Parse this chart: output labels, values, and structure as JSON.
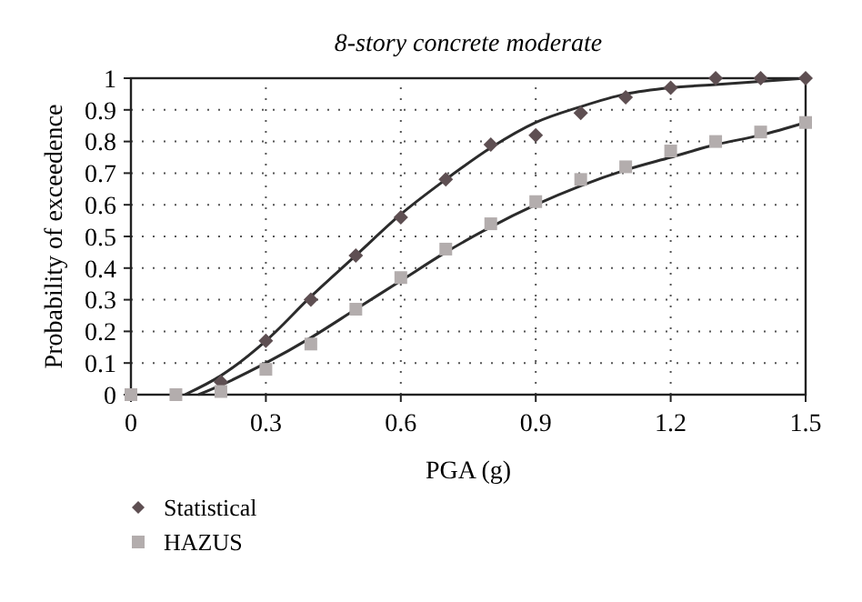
{
  "chart_data": {
    "type": "scatter",
    "title": "8-story concrete moderate",
    "xlabel": "PGA (g)",
    "ylabel": "Probability of exceedence",
    "xlim": [
      0,
      1.5
    ],
    "ylim": [
      0,
      1
    ],
    "xticks": [
      0,
      0.3,
      0.6,
      0.9,
      1.2,
      1.5
    ],
    "yticks": [
      0,
      0.1,
      0.2,
      0.3,
      0.4,
      0.5,
      0.6,
      0.7,
      0.8,
      0.9,
      1
    ],
    "grid": true,
    "legend": "bottom left",
    "series": [
      {
        "type": "line",
        "color": "#2b2b2b",
        "marker": "none",
        "line_style": "solid",
        "x": [
          0.12,
          0.2,
          0.3,
          0.4,
          0.5,
          0.6,
          0.7,
          0.8,
          0.9,
          1.0,
          1.1,
          1.2,
          1.3,
          1.4,
          1.5
        ],
        "values": [
          0,
          0.06,
          0.17,
          0.31,
          0.44,
          0.57,
          0.68,
          0.78,
          0.86,
          0.91,
          0.95,
          0.97,
          0.98,
          0.99,
          1.0
        ]
      },
      {
        "type": "line",
        "color": "#2b2b2b",
        "marker": "none",
        "line_style": "solid",
        "x": [
          0.15,
          0.2,
          0.3,
          0.4,
          0.5,
          0.6,
          0.7,
          0.8,
          0.9,
          1.0,
          1.1,
          1.2,
          1.3,
          1.4,
          1.5
        ],
        "values": [
          0,
          0.03,
          0.1,
          0.18,
          0.27,
          0.36,
          0.45,
          0.53,
          0.6,
          0.66,
          0.71,
          0.75,
          0.79,
          0.82,
          0.86
        ]
      },
      {
        "name": "Statistical",
        "marker": "diamond",
        "color": "#5e4f52",
        "x": [
          0.2,
          0.3,
          0.4,
          0.5,
          0.6,
          0.7,
          0.8,
          0.9,
          1.0,
          1.1,
          1.2,
          1.3,
          1.4,
          1.5
        ],
        "values": [
          0.04,
          0.17,
          0.3,
          0.44,
          0.56,
          0.68,
          0.79,
          0.82,
          0.89,
          0.94,
          0.97,
          1,
          1,
          1
        ]
      },
      {
        "name": "HAZUS",
        "marker": "square",
        "color": "#b3adad",
        "x": [
          0,
          0.1,
          0.2,
          0.3,
          0.4,
          0.5,
          0.6,
          0.7,
          0.8,
          0.9,
          1.0,
          1.1,
          1.2,
          1.3,
          1.4,
          1.5
        ],
        "values": [
          0,
          0,
          0.01,
          0.08,
          0.16,
          0.27,
          0.37,
          0.46,
          0.54,
          0.61,
          0.68,
          0.72,
          0.77,
          0.8,
          0.83,
          0.86
        ]
      }
    ]
  }
}
